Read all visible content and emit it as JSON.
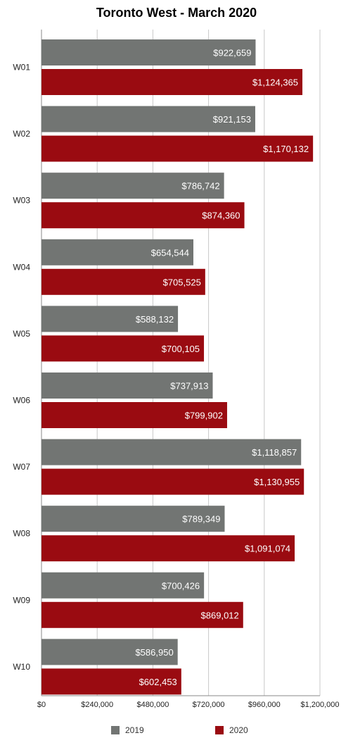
{
  "chart_data": {
    "type": "bar",
    "orientation": "horizontal",
    "title": "Toronto West - March 2020",
    "xlabel": "",
    "ylabel": "",
    "categories": [
      "W01",
      "W02",
      "W03",
      "W04",
      "W05",
      "W06",
      "W07",
      "W08",
      "W09",
      "W10"
    ],
    "series": [
      {
        "name": "2019",
        "color": "#727573",
        "values": [
          922659,
          921153,
          786742,
          654544,
          588132,
          737913,
          1118857,
          789349,
          700426,
          586950
        ],
        "labels": [
          "$922,659",
          "$921,153",
          "$786,742",
          "$654,544",
          "$588,132",
          "$737,913",
          "$1,118,857",
          "$789,349",
          "$700,426",
          "$586,950"
        ]
      },
      {
        "name": "2020",
        "color": "#9a0b11",
        "values": [
          1124365,
          1170132,
          874360,
          705525,
          700105,
          799902,
          1130955,
          1091074,
          869012,
          602453
        ],
        "labels": [
          "$1,124,365",
          "$1,170,132",
          "$874,360",
          "$705,525",
          "$700,105",
          "$799,902",
          "$1,130,955",
          "$1,091,074",
          "$869,012",
          "$602,453"
        ]
      }
    ],
    "xlim": [
      0,
      1200000
    ],
    "xticks": [
      0,
      240000,
      480000,
      720000,
      960000,
      1200000
    ],
    "xtick_labels": [
      "$0",
      "$240,000",
      "$480,000",
      "$720,000",
      "$960,000",
      "$1,200,000"
    ],
    "grid": true,
    "legend_position": "bottom"
  }
}
